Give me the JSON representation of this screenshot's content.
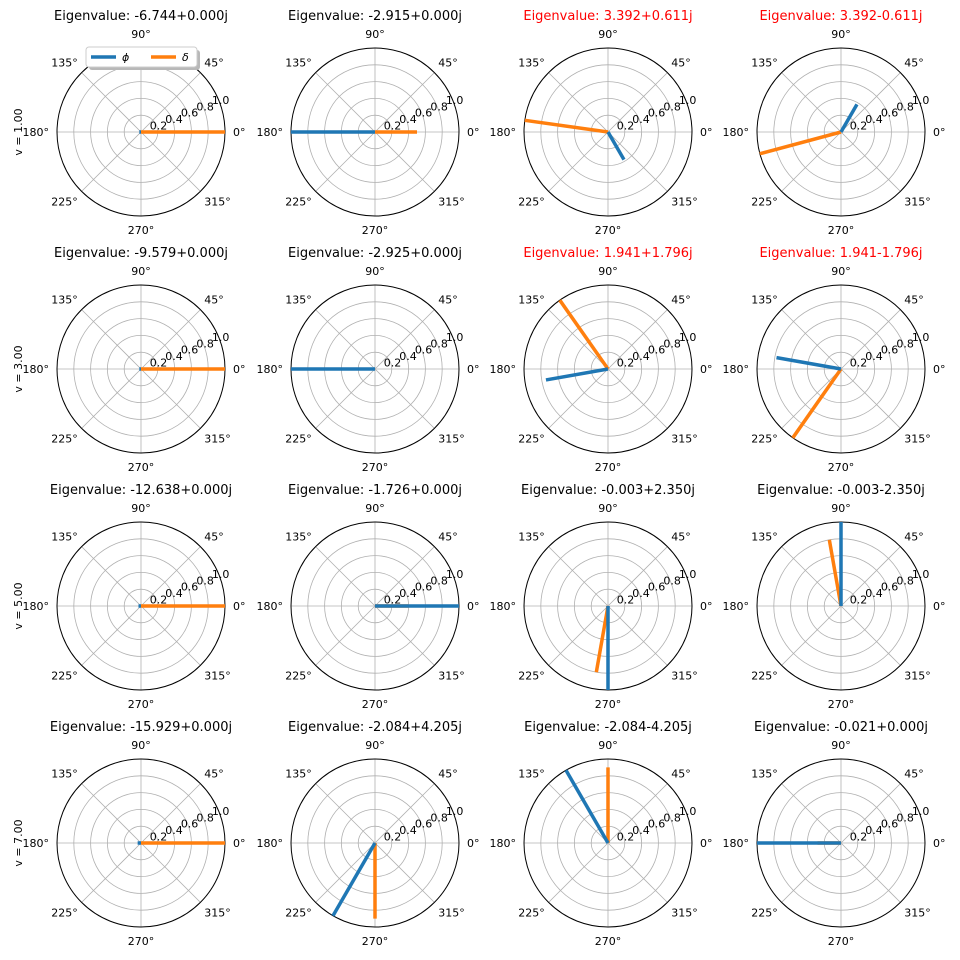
{
  "chart_data": {
    "type": "polar",
    "layout": {
      "rows": 4,
      "cols": 4
    },
    "radial_ticks": [
      "0.2",
      "0.4",
      "0.6",
      "0.8",
      "1.0"
    ],
    "radial_tick_values": [
      0.2,
      0.4,
      0.6,
      0.8,
      1.0
    ],
    "rlim": [
      0,
      1.0
    ],
    "angle_ticks": [
      "0°",
      "45°",
      "90°",
      "135°",
      "180°",
      "225°",
      "270°",
      "315°"
    ],
    "angle_tick_degrees": [
      0,
      45,
      90,
      135,
      180,
      225,
      270,
      315
    ],
    "grid": true,
    "legend": {
      "placement": "top of first panel",
      "entries": [
        {
          "name": "ϕ",
          "color": "#1f77b4"
        },
        {
          "name": "δ",
          "color": "#ff7f0e"
        }
      ]
    },
    "colors": {
      "phi": "#1f77b4",
      "delta": "#ff7f0e",
      "unstable_title": "#ff0000",
      "stable_title": "#000000"
    },
    "row_labels": [
      "v = 1.00",
      "v = 3.00",
      "v = 5.00",
      "v = 7.00"
    ],
    "panels": [
      {
        "title": "Eigenvalue: -6.744+0.000j",
        "unstable": false,
        "phi": {
          "angle": 180,
          "magnitude": 0.02
        },
        "delta": {
          "angle": 0,
          "magnitude": 1.0
        }
      },
      {
        "title": "Eigenvalue: -2.915+0.000j",
        "unstable": false,
        "phi": {
          "angle": 180,
          "magnitude": 1.0
        },
        "delta": {
          "angle": 0,
          "magnitude": 0.5
        }
      },
      {
        "title": "Eigenvalue: 3.392+0.611j",
        "unstable": true,
        "phi": {
          "angle": 300,
          "magnitude": 0.38
        },
        "delta": {
          "angle": 172,
          "magnitude": 1.0
        }
      },
      {
        "title": "Eigenvalue: 3.392-0.611j",
        "unstable": true,
        "phi": {
          "angle": 60,
          "magnitude": 0.38
        },
        "delta": {
          "angle": 195,
          "magnitude": 1.0
        }
      },
      {
        "title": "Eigenvalue: -9.579+0.000j",
        "unstable": false,
        "phi": {
          "angle": 180,
          "magnitude": 0.02
        },
        "delta": {
          "angle": 0,
          "magnitude": 1.0
        }
      },
      {
        "title": "Eigenvalue: -2.925+0.000j",
        "unstable": false,
        "phi": {
          "angle": 180,
          "magnitude": 1.0
        },
        "delta": {
          "angle": 0,
          "magnitude": 0.0
        }
      },
      {
        "title": "Eigenvalue: 1.941+1.796j",
        "unstable": true,
        "phi": {
          "angle": 190,
          "magnitude": 0.75
        },
        "delta": {
          "angle": 125,
          "magnitude": 1.0
        }
      },
      {
        "title": "Eigenvalue: 1.941-1.796j",
        "unstable": true,
        "phi": {
          "angle": 170,
          "magnitude": 0.78
        },
        "delta": {
          "angle": 235,
          "magnitude": 1.0
        }
      },
      {
        "title": "Eigenvalue: -12.638+0.000j",
        "unstable": false,
        "phi": {
          "angle": 180,
          "magnitude": 0.03
        },
        "delta": {
          "angle": 0,
          "magnitude": 1.0
        }
      },
      {
        "title": "Eigenvalue: -1.726+0.000j",
        "unstable": false,
        "phi": {
          "angle": 0,
          "magnitude": 1.0
        },
        "delta": {
          "angle": 0,
          "magnitude": 0.4
        }
      },
      {
        "title": "Eigenvalue: -0.003+2.350j",
        "unstable": false,
        "phi": {
          "angle": 270,
          "magnitude": 1.0
        },
        "delta": {
          "angle": 260,
          "magnitude": 0.8
        }
      },
      {
        "title": "Eigenvalue: -0.003-2.350j",
        "unstable": false,
        "phi": {
          "angle": 90,
          "magnitude": 1.0
        },
        "delta": {
          "angle": 100,
          "magnitude": 0.8
        }
      },
      {
        "title": "Eigenvalue: -15.929+0.000j",
        "unstable": false,
        "phi": {
          "angle": 180,
          "magnitude": 0.04
        },
        "delta": {
          "angle": 0,
          "magnitude": 1.0
        }
      },
      {
        "title": "Eigenvalue: -2.084+4.205j",
        "unstable": false,
        "phi": {
          "angle": 240,
          "magnitude": 1.0
        },
        "delta": {
          "angle": 270,
          "magnitude": 0.9
        }
      },
      {
        "title": "Eigenvalue: -2.084-4.205j",
        "unstable": false,
        "phi": {
          "angle": 120,
          "magnitude": 1.0
        },
        "delta": {
          "angle": 90,
          "magnitude": 0.9
        }
      },
      {
        "title": "Eigenvalue: -0.021+0.000j",
        "unstable": false,
        "phi": {
          "angle": 180,
          "magnitude": 1.0
        },
        "delta": {
          "angle": 180,
          "magnitude": 0.28
        }
      }
    ]
  }
}
